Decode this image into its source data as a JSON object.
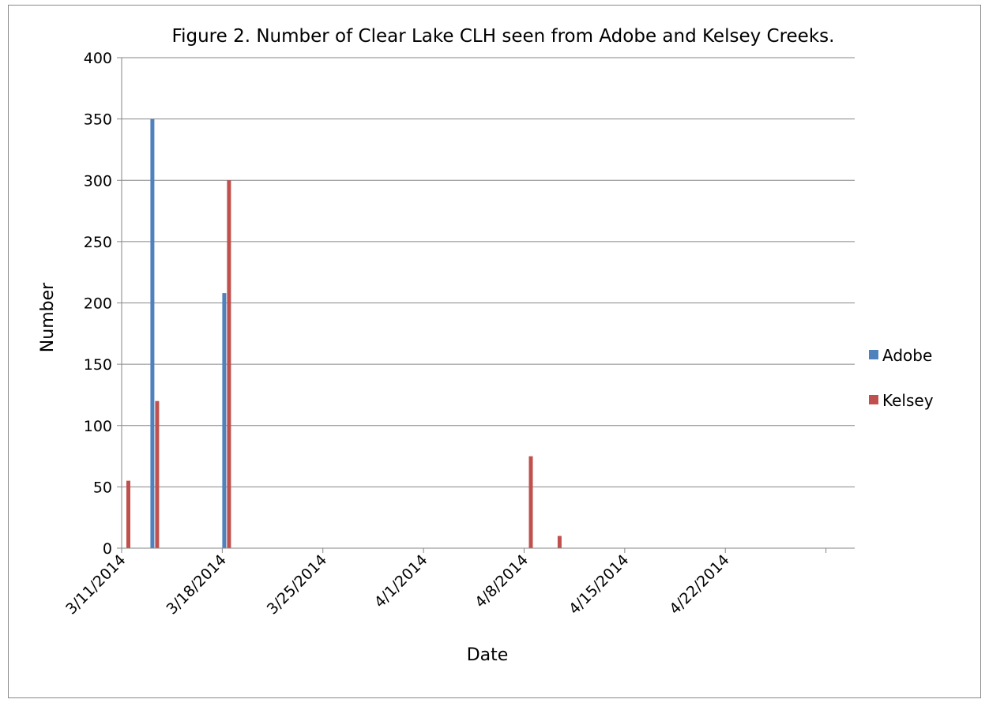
{
  "chart_data": {
    "type": "bar",
    "title": "Figure 2.  Number of Clear Lake CLH seen from Adobe and Kelsey Creeks.",
    "xlabel": "Date",
    "ylabel": "Number",
    "xlim": [
      "3/11/2014",
      "5/1/2014"
    ],
    "ylim": [
      0,
      400
    ],
    "y_ticks": [
      "0",
      "50",
      "100",
      "150",
      "200",
      "250",
      "300",
      "350",
      "400"
    ],
    "x_ticks": [
      "3/11/2014",
      "3/18/2014",
      "3/25/2014",
      "4/1/2014",
      "4/8/2014",
      "4/15/2014",
      "4/22/2014"
    ],
    "grid": true,
    "legend_position": "right",
    "series": [
      {
        "name": "Adobe",
        "color": "#4f81bd",
        "points": [
          {
            "x": "3/13/2014",
            "y": 350
          },
          {
            "x": "3/18/2014",
            "y": 208
          }
        ]
      },
      {
        "name": "Kelsey",
        "color": "#c0504d",
        "points": [
          {
            "x": "3/11/2014",
            "y": 55
          },
          {
            "x": "3/13/2014",
            "y": 120
          },
          {
            "x": "3/18/2014",
            "y": 300
          },
          {
            "x": "4/8/2014",
            "y": 75
          },
          {
            "x": "4/10/2014",
            "y": 10
          }
        ]
      }
    ]
  }
}
